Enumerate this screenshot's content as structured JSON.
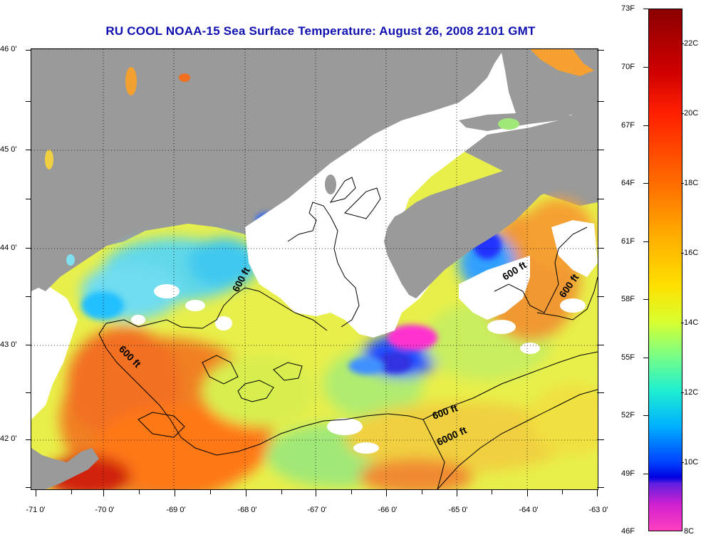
{
  "title": "RU COOL  NOAA-15  Sea Surface Temperature:  August 26, 2008 2101 GMT",
  "latitude_labels": [
    "46 0'",
    "45 0'",
    "44 0'",
    "43 0'",
    "42 0'"
  ],
  "longitude_labels": [
    "-71 0'",
    "-70 0'",
    "-69 0'",
    "-68 0'",
    "-67 0'",
    "-66 0'",
    "-65 0'",
    "-64 0'",
    "-63 0'"
  ],
  "contour_labels": [
    "600 ft",
    "600 ft",
    "600 ft",
    "600 ft",
    "600 ft",
    "6000 ft"
  ],
  "colorbar": {
    "fahrenheit_labels": [
      "73F",
      "70F",
      "67F",
      "64F",
      "61F",
      "58F",
      "55F",
      "52F",
      "49F",
      "46F"
    ],
    "celsius_labels": [
      "22C",
      "20C",
      "18C",
      "16C",
      "14C",
      "12C",
      "10C",
      "8C"
    ]
  },
  "colors": {
    "land": "#9a9a9a",
    "cloud_mask": "#ffffff",
    "title": "#1010b0",
    "contour": "#000000"
  }
}
